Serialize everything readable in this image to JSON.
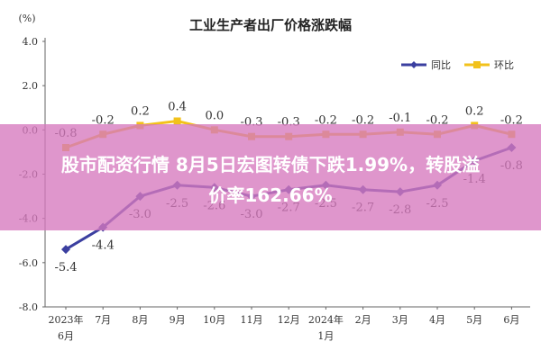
{
  "chart_data": {
    "type": "line",
    "title": "工业生产者出厂价格涨跌幅",
    "unit_label": "(%)",
    "ylim": [
      -8.0,
      4.0
    ],
    "yticks": [
      "4.0",
      "2.0",
      "0.0",
      "-2.0",
      "-4.0",
      "-6.0",
      "-8.0"
    ],
    "grid": false,
    "legend_position": "top-right",
    "categories": [
      {
        "line1": "2023年",
        "line2": "6月"
      },
      {
        "line1": "7月",
        "line2": ""
      },
      {
        "line1": "8月",
        "line2": ""
      },
      {
        "line1": "9月",
        "line2": ""
      },
      {
        "line1": "10月",
        "line2": ""
      },
      {
        "line1": "11月",
        "line2": ""
      },
      {
        "line1": "12月",
        "line2": ""
      },
      {
        "line1": "2024年",
        "line2": "1月"
      },
      {
        "line1": "2月",
        "line2": ""
      },
      {
        "line1": "3月",
        "line2": ""
      },
      {
        "line1": "4月",
        "line2": ""
      },
      {
        "line1": "5月",
        "line2": ""
      },
      {
        "line1": "6月",
        "line2": ""
      }
    ],
    "series": [
      {
        "name": "同比",
        "color": "#3b3fa0",
        "values": [
          -5.4,
          -4.4,
          -3.0,
          -2.5,
          -2.6,
          -3.0,
          -2.7,
          -2.5,
          -2.7,
          -2.8,
          -2.5,
          -1.4,
          -0.8
        ],
        "labels": [
          "-5.4",
          "-4.4",
          "-3.0",
          "-2.5",
          "-2.6",
          "-3.0",
          "-2.7",
          "-2.5",
          "-2.7",
          "-2.8",
          "-2.5",
          "-1.4",
          "-0.8"
        ]
      },
      {
        "name": "环比",
        "color": "#f2c21b",
        "values": [
          -0.8,
          -0.2,
          0.2,
          0.4,
          0.0,
          -0.3,
          -0.3,
          -0.2,
          -0.2,
          -0.1,
          -0.2,
          0.2,
          -0.2
        ],
        "labels": [
          "-0.8",
          "-0.2",
          "0.2",
          "0.4",
          "0.0",
          "-0.3",
          "-0.3",
          "-0.2",
          "-0.2",
          "-0.1",
          "-0.2",
          "0.2",
          "-0.2"
        ]
      }
    ]
  },
  "overlay": {
    "line1": "股市配资行情 8月5日宏图转债下跌1.99%，转股溢",
    "line2": "价率162.66%"
  }
}
